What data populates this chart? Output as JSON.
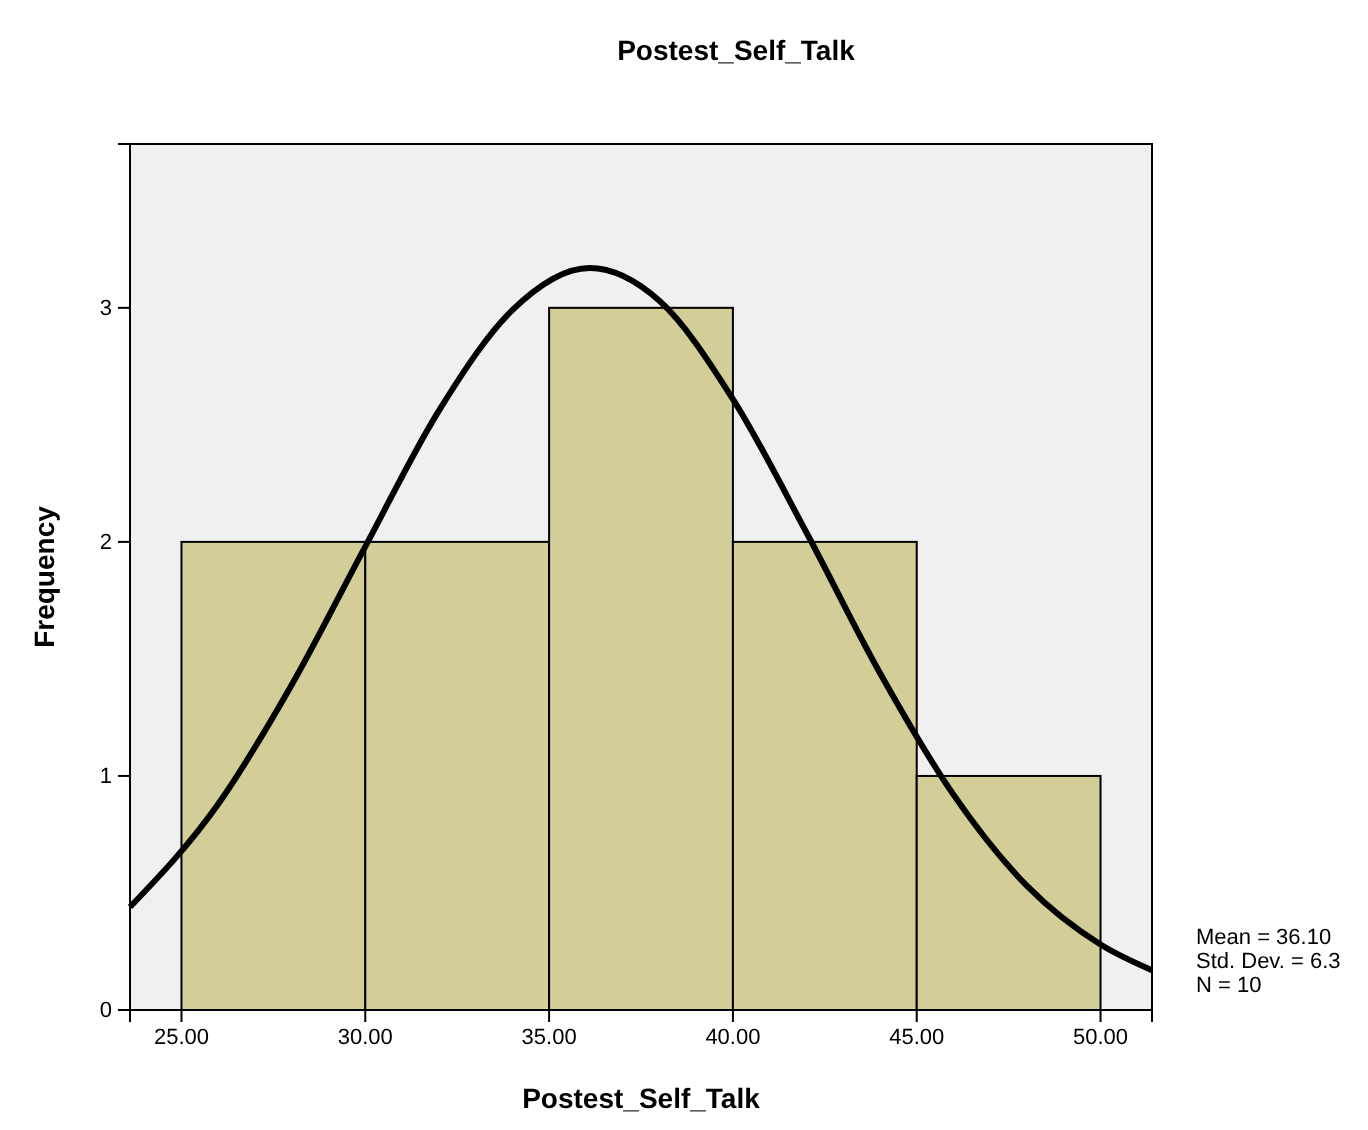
{
  "chart_data": {
    "type": "histogram",
    "title": "Postest_Self_Talk",
    "xlabel": "Postest_Self_Talk",
    "ylabel": "Frequency",
    "bins": [
      25,
      30,
      35,
      40,
      45,
      50
    ],
    "values": [
      2,
      2,
      3,
      2,
      1
    ],
    "color": "#d3ce98",
    "series": [
      {
        "type": "line",
        "color": "#000000",
        "x": [
          23.6,
          26,
          28,
          30,
          32,
          34,
          36.1,
          38,
          40,
          42,
          44,
          46,
          48,
          50,
          51.4
        ],
        "values": [
          0.44,
          0.88,
          1.39,
          1.98,
          2.56,
          2.99,
          3.17,
          3.03,
          2.61,
          2.04,
          1.44,
          0.92,
          0.53,
          0.28,
          0.17
        ]
      }
    ],
    "xlim": [
      23.6,
      51.4
    ],
    "ylim": [
      0,
      3.7
    ],
    "xticks": [
      {
        "value": 25,
        "label": "25.00"
      },
      {
        "value": 30,
        "label": "30.00"
      },
      {
        "value": 35,
        "label": "35.00"
      },
      {
        "value": 40,
        "label": "40.00"
      },
      {
        "value": 45,
        "label": "45.00"
      },
      {
        "value": 50,
        "label": "50.00"
      }
    ],
    "yticks": [
      0,
      1,
      2,
      3
    ],
    "grid": false,
    "annotations": [
      "Mean = 36.10",
      "Std. Dev. = 6.3",
      "N = 10"
    ]
  }
}
